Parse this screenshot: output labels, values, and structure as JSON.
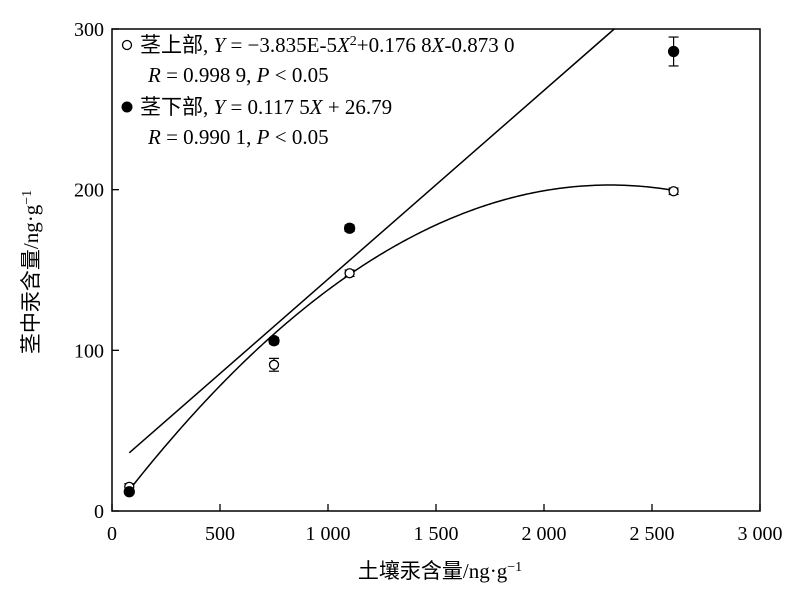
{
  "chart_data": {
    "type": "scatter",
    "xlabel": "土壤汞含量/ng·g",
    "xlabel_sup": "−1",
    "ylabel": "茎中汞含量/ng·g",
    "ylabel_sup": "−1",
    "xlim": [
      0,
      3000
    ],
    "ylim": [
      0,
      300
    ],
    "xticks": [
      0,
      500,
      1000,
      1500,
      2000,
      2500,
      3000
    ],
    "xtick_labels": [
      "0",
      "500",
      "1 000",
      "1 500",
      "2 000",
      "2 500",
      "3 000"
    ],
    "yticks": [
      0,
      100,
      200,
      300
    ],
    "ytick_labels": [
      "0",
      "100",
      "200",
      "300"
    ],
    "grid": false,
    "legend_position": "top-left",
    "series": [
      {
        "name": "茎上部",
        "marker": "open-circle",
        "x": [
          80,
          750,
          1100,
          2600
        ],
        "y": [
          15,
          91,
          148,
          199
        ],
        "err": [
          2,
          4,
          2,
          2
        ],
        "fit": {
          "type": "quadratic",
          "a": -3.835e-05,
          "b": 0.1768,
          "c": -0.873
        },
        "legend_parts": [
          "茎上部, ",
          "Y",
          " = −3.835E-5",
          "X",
          "2",
          "+0.176 8",
          "X",
          "-0.873 0"
        ],
        "stats_parts": [
          "R",
          " = 0.998 9, ",
          "P",
          " < 0.05"
        ]
      },
      {
        "name": "茎下部",
        "marker": "filled-circle",
        "x": [
          80,
          750,
          1100,
          2600
        ],
        "y": [
          12,
          106,
          176,
          286
        ],
        "err": [
          1,
          2,
          2,
          9
        ],
        "fit": {
          "type": "linear",
          "slope": 0.1175,
          "intercept": 26.79
        },
        "legend_parts": [
          "茎下部, ",
          "Y",
          " = 0.117 5",
          "X",
          " + 26.79"
        ],
        "stats_parts": [
          "R",
          " = 0.990 1, ",
          "P",
          " < 0.05"
        ]
      }
    ]
  }
}
